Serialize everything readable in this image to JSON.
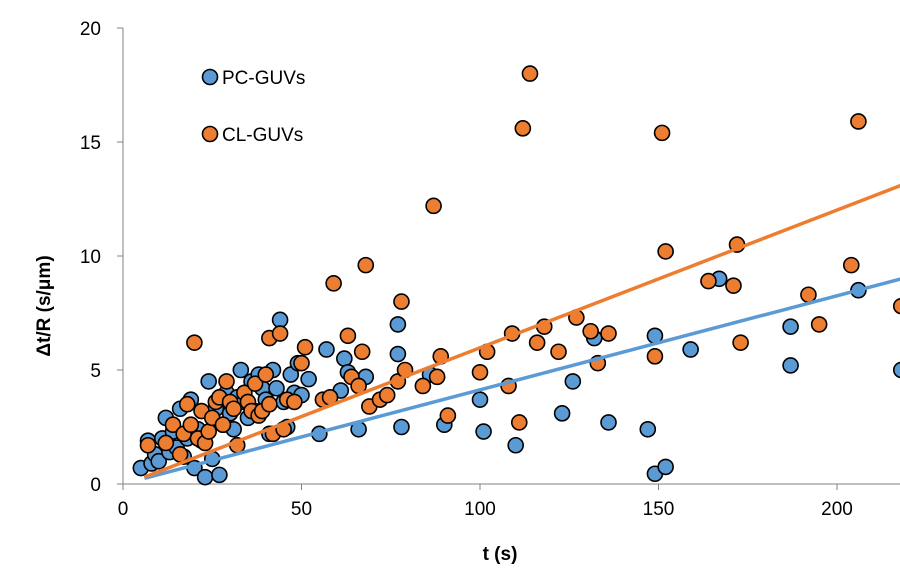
{
  "chart_data": {
    "type": "scatter",
    "xlabel": "t (s)",
    "ylabel": "Δt/R (s/μm)",
    "xlim": [
      0,
      218
    ],
    "ylim": [
      0,
      20
    ],
    "xticks": [
      0,
      50,
      100,
      150,
      200
    ],
    "yticks": [
      0,
      5,
      10,
      15,
      20
    ],
    "grid": false,
    "legend_position": "top-left",
    "series": [
      {
        "name": "PC-GUVs",
        "color": "#5b9bd5",
        "trendline": {
          "x": [
            6,
            218
          ],
          "y": [
            0.25,
            9.0
          ]
        },
        "points": [
          [
            5,
            0.7
          ],
          [
            7,
            1.9
          ],
          [
            8,
            0.9
          ],
          [
            9,
            1.3
          ],
          [
            10,
            1.0
          ],
          [
            11,
            2.0
          ],
          [
            12,
            2.9
          ],
          [
            13,
            1.4
          ],
          [
            14,
            2.3
          ],
          [
            15,
            1.6
          ],
          [
            16,
            3.3
          ],
          [
            17,
            1.2
          ],
          [
            18,
            2.0
          ],
          [
            19,
            3.7
          ],
          [
            20,
            0.7
          ],
          [
            21,
            2.4
          ],
          [
            22,
            1.9
          ],
          [
            23,
            0.3
          ],
          [
            24,
            4.5
          ],
          [
            25,
            1.1
          ],
          [
            26,
            3.3
          ],
          [
            27,
            0.4
          ],
          [
            28,
            2.6
          ],
          [
            29,
            4.0
          ],
          [
            30,
            3.1
          ],
          [
            31,
            2.4
          ],
          [
            32,
            3.8
          ],
          [
            33,
            5.0
          ],
          [
            34,
            3.6
          ],
          [
            35,
            2.9
          ],
          [
            36,
            4.5
          ],
          [
            37,
            3.2
          ],
          [
            38,
            4.8
          ],
          [
            39,
            4.2
          ],
          [
            40,
            3.7
          ],
          [
            41,
            2.2
          ],
          [
            42,
            5.0
          ],
          [
            43,
            4.2
          ],
          [
            44,
            7.2
          ],
          [
            45,
            3.6
          ],
          [
            46,
            2.5
          ],
          [
            47,
            4.8
          ],
          [
            48,
            4.0
          ],
          [
            49,
            5.3
          ],
          [
            50,
            3.9
          ],
          [
            52,
            4.6
          ],
          [
            55,
            2.2
          ],
          [
            57,
            5.9
          ],
          [
            61,
            4.1
          ],
          [
            62,
            5.5
          ],
          [
            63,
            4.9
          ],
          [
            66,
            2.4
          ],
          [
            68,
            4.7
          ],
          [
            77,
            7.0
          ],
          [
            77,
            5.7
          ],
          [
            78,
            2.5
          ],
          [
            86,
            4.8
          ],
          [
            90,
            2.6
          ],
          [
            100,
            3.7
          ],
          [
            101,
            2.3
          ],
          [
            110,
            1.7
          ],
          [
            123,
            3.1
          ],
          [
            126,
            4.5
          ],
          [
            132,
            6.4
          ],
          [
            136,
            2.7
          ],
          [
            147,
            2.4
          ],
          [
            149,
            0.45
          ],
          [
            149,
            6.5
          ],
          [
            152,
            0.75
          ],
          [
            159,
            5.9
          ],
          [
            167,
            9.0
          ],
          [
            187,
            6.9
          ],
          [
            187,
            5.2
          ],
          [
            206,
            8.5
          ],
          [
            218,
            5.0
          ]
        ]
      },
      {
        "name": "CL-GUVs",
        "color": "#ed7d31",
        "trendline": {
          "x": [
            6,
            218
          ],
          "y": [
            0.3,
            13.1
          ]
        },
        "points": [
          [
            7,
            1.7
          ],
          [
            12,
            1.8
          ],
          [
            14,
            2.6
          ],
          [
            16,
            1.3
          ],
          [
            17,
            2.2
          ],
          [
            18,
            3.5
          ],
          [
            19,
            2.6
          ],
          [
            20,
            6.2
          ],
          [
            21,
            2.0
          ],
          [
            22,
            3.2
          ],
          [
            23,
            1.8
          ],
          [
            24,
            2.3
          ],
          [
            25,
            2.9
          ],
          [
            26,
            3.6
          ],
          [
            27,
            3.8
          ],
          [
            28,
            2.6
          ],
          [
            29,
            4.5
          ],
          [
            30,
            3.6
          ],
          [
            31,
            3.3
          ],
          [
            32,
            1.7
          ],
          [
            34,
            4.0
          ],
          [
            35,
            3.6
          ],
          [
            36,
            3.2
          ],
          [
            37,
            4.4
          ],
          [
            38,
            3.0
          ],
          [
            39,
            3.2
          ],
          [
            40,
            4.8
          ],
          [
            41,
            3.5
          ],
          [
            41,
            6.4
          ],
          [
            42,
            2.2
          ],
          [
            44,
            6.6
          ],
          [
            45,
            2.4
          ],
          [
            46,
            3.7
          ],
          [
            48,
            3.6
          ],
          [
            50,
            5.3
          ],
          [
            51,
            6.0
          ],
          [
            56,
            3.7
          ],
          [
            58,
            3.8
          ],
          [
            59,
            8.8
          ],
          [
            63,
            6.5
          ],
          [
            64,
            4.7
          ],
          [
            66,
            4.3
          ],
          [
            67,
            5.8
          ],
          [
            68,
            9.6
          ],
          [
            69,
            3.4
          ],
          [
            72,
            3.7
          ],
          [
            74,
            3.9
          ],
          [
            77,
            4.5
          ],
          [
            78,
            8.0
          ],
          [
            79,
            5.0
          ],
          [
            84,
            4.3
          ],
          [
            87,
            12.2
          ],
          [
            88,
            4.7
          ],
          [
            89,
            5.6
          ],
          [
            91,
            3.0
          ],
          [
            100,
            4.9
          ],
          [
            102,
            5.8
          ],
          [
            108,
            4.3
          ],
          [
            109,
            6.6
          ],
          [
            111,
            2.7
          ],
          [
            112,
            15.6
          ],
          [
            114,
            18.0
          ],
          [
            116,
            6.2
          ],
          [
            118,
            6.9
          ],
          [
            122,
            5.8
          ],
          [
            127,
            7.3
          ],
          [
            131,
            6.7
          ],
          [
            133,
            5.3
          ],
          [
            136,
            6.6
          ],
          [
            149,
            5.6
          ],
          [
            151,
            15.4
          ],
          [
            152,
            10.2
          ],
          [
            164,
            8.9
          ],
          [
            171,
            8.7
          ],
          [
            172,
            10.5
          ],
          [
            173,
            6.2
          ],
          [
            192,
            8.3
          ],
          [
            195,
            7.0
          ],
          [
            204,
            9.6
          ],
          [
            206,
            15.9
          ],
          [
            218,
            7.8
          ]
        ]
      }
    ]
  }
}
